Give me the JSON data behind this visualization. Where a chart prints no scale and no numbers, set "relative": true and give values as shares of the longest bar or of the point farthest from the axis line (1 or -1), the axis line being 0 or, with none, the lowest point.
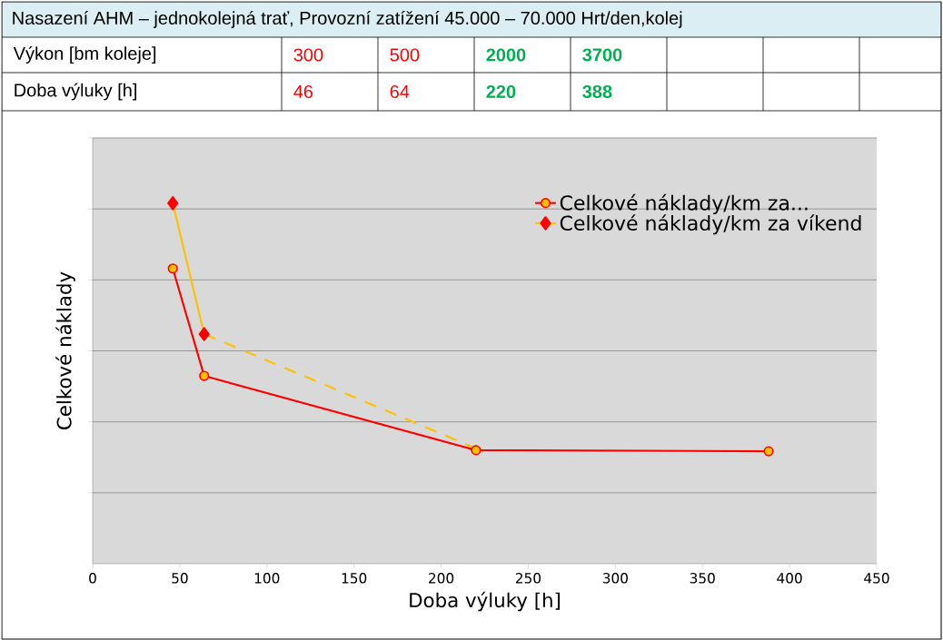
{
  "chart_data": {
    "type": "line",
    "title": "Nasazení AHM – jednokolejná trať, Provozní zatížení 45.000 – 70.000 Hrt/den,kolej",
    "annotations": [
      "Výkon [bm koleje]",
      "300",
      "500",
      "2000",
      "3700",
      "Doba výluky [h]",
      "46",
      "64",
      "220",
      "388"
    ],
    "xlabel": "Doba výluky [h]",
    "ylabel": "Celkové náklady",
    "relative": true,
    "xlim": [
      0,
      450
    ],
    "xticks": [
      0,
      50,
      100,
      150,
      200,
      250,
      300,
      350,
      400,
      450
    ],
    "grid": "y",
    "legend": "top right",
    "series": [
      {
        "name": "Celkové náklady/km za...",
        "color": "#ff0000",
        "marker": "circle",
        "x": [
          46,
          64,
          220,
          388
        ],
        "values": [
          0.819,
          0.521,
          0.315,
          0.312
        ]
      },
      {
        "name": "Celkové náklady/km za víkend",
        "color": "#ffc000",
        "marker": "diamond",
        "x": [
          46,
          64
        ],
        "values": [
          1,
          0.637
        ]
      },
      {
        "color": "#ffc000",
        "line_style": "dashed",
        "marker": "none",
        "x": [
          64,
          220
        ],
        "values": [
          0.637,
          0.32
        ]
      }
    ]
  }
}
